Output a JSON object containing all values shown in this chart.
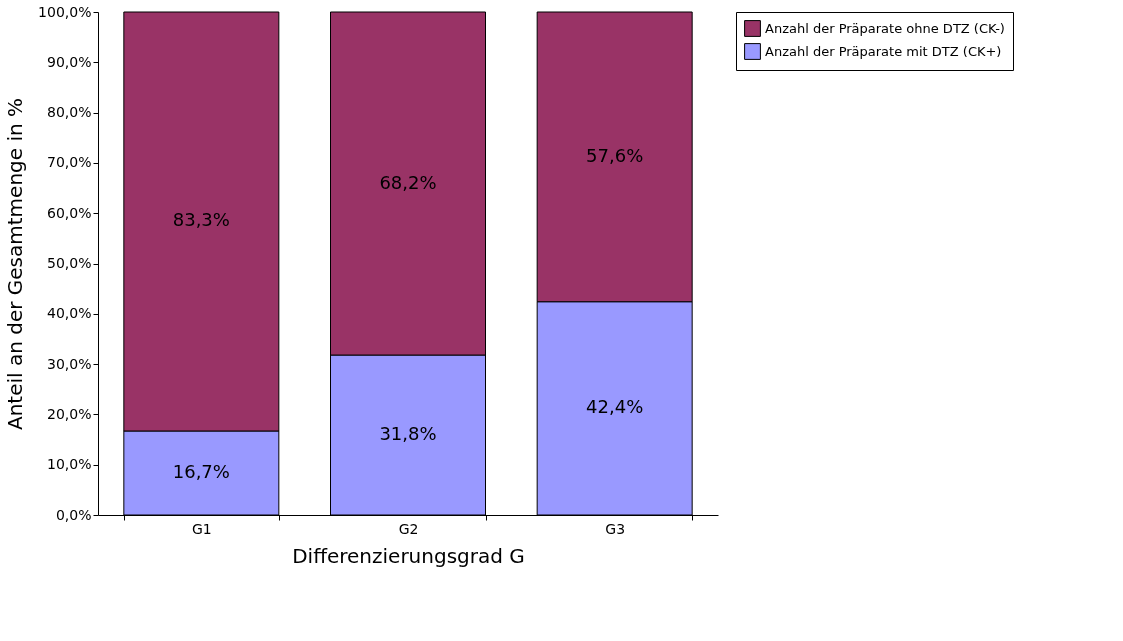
{
  "chart_data": {
    "type": "bar",
    "stacked": true,
    "xlabel": "Differenzierungsgrad G",
    "ylabel": "Anteil an der Gesamtmenge in %",
    "categories": [
      "G1",
      "G2",
      "G3"
    ],
    "series": [
      {
        "name": "Anzahl der Präparate mit DTZ (CK+)",
        "color": "#9999ff",
        "values": [
          16.7,
          31.8,
          42.4
        ],
        "value_labels": [
          "16,7%",
          "31,8%",
          "42,4%"
        ]
      },
      {
        "name": "Anzahl der Präparate ohne DTZ (CK-)",
        "color": "#993366",
        "values": [
          83.3,
          68.2,
          57.6
        ],
        "value_labels": [
          "83,3%",
          "68,2%",
          "57,6%"
        ]
      }
    ],
    "ylim": [
      0,
      100
    ],
    "yticks": [
      {
        "value": 0,
        "label": "0,0%"
      },
      {
        "value": 10,
        "label": "10,0%"
      },
      {
        "value": 20,
        "label": "20,0%"
      },
      {
        "value": 30,
        "label": "30,0%"
      },
      {
        "value": 40,
        "label": "40,0%"
      },
      {
        "value": 50,
        "label": "50,0%"
      },
      {
        "value": 60,
        "label": "60,0%"
      },
      {
        "value": 70,
        "label": "70,0%"
      },
      {
        "value": 80,
        "label": "80,0%"
      },
      {
        "value": 90,
        "label": "90,0%"
      },
      {
        "value": 100,
        "label": "100,0%"
      }
    ],
    "grid": false,
    "legend": "right"
  }
}
